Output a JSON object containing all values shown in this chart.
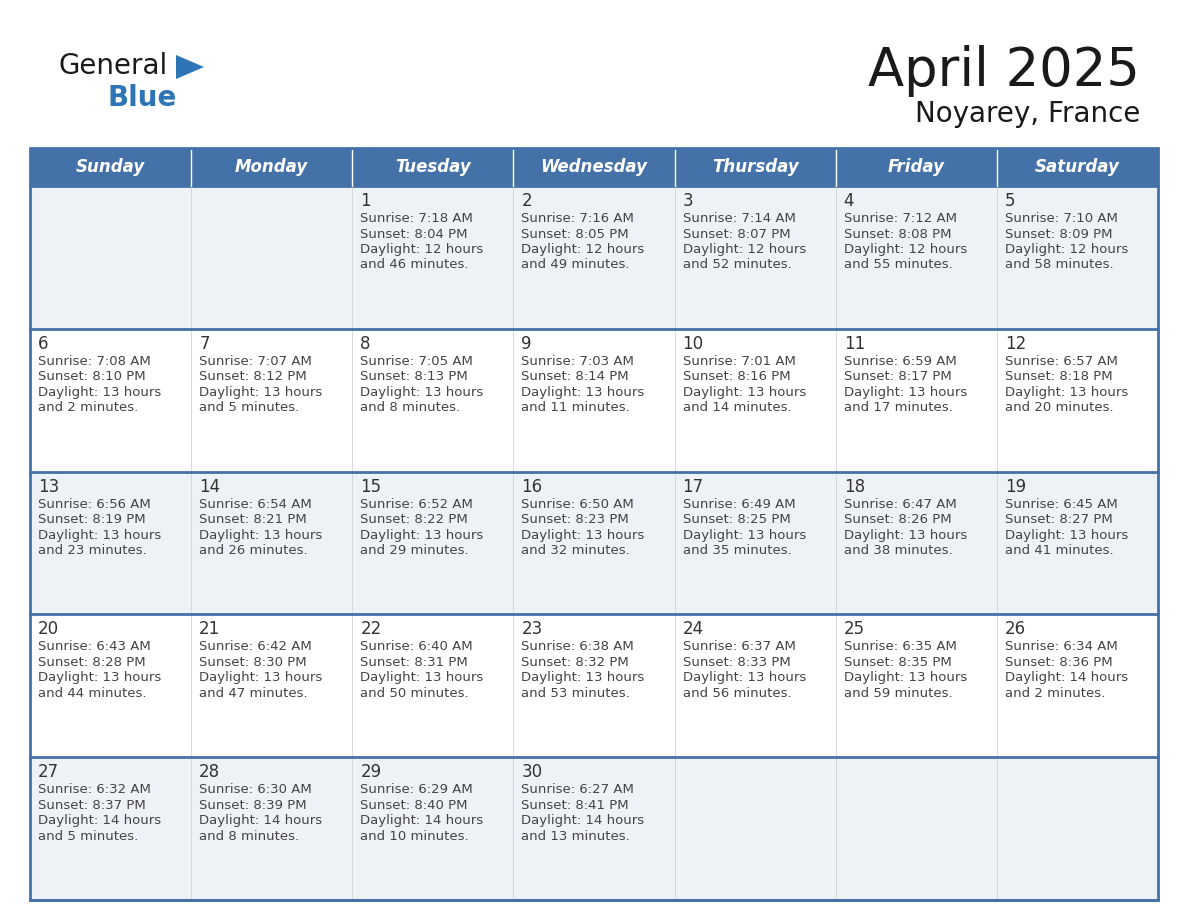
{
  "title": "April 2025",
  "subtitle": "Noyarey, France",
  "days_of_week": [
    "Sunday",
    "Monday",
    "Tuesday",
    "Wednesday",
    "Thursday",
    "Friday",
    "Saturday"
  ],
  "header_bg": "#4472a8",
  "header_text": "#ffffff",
  "row_bg_odd": "#eef2f7",
  "row_bg_even": "#ffffff",
  "row_border_color": "#4472a8",
  "day_num_color": "#333333",
  "text_color": "#444444",
  "title_color": "#1a1a1a",
  "logo_general_color": "#1a1a1a",
  "logo_blue_color": "#2e75b6",
  "weeks": [
    [
      {
        "day": "",
        "sunrise": "",
        "sunset": "",
        "daylight": ""
      },
      {
        "day": "",
        "sunrise": "",
        "sunset": "",
        "daylight": ""
      },
      {
        "day": "1",
        "sunrise": "Sunrise: 7:18 AM",
        "sunset": "Sunset: 8:04 PM",
        "daylight": "Daylight: 12 hours\nand 46 minutes."
      },
      {
        "day": "2",
        "sunrise": "Sunrise: 7:16 AM",
        "sunset": "Sunset: 8:05 PM",
        "daylight": "Daylight: 12 hours\nand 49 minutes."
      },
      {
        "day": "3",
        "sunrise": "Sunrise: 7:14 AM",
        "sunset": "Sunset: 8:07 PM",
        "daylight": "Daylight: 12 hours\nand 52 minutes."
      },
      {
        "day": "4",
        "sunrise": "Sunrise: 7:12 AM",
        "sunset": "Sunset: 8:08 PM",
        "daylight": "Daylight: 12 hours\nand 55 minutes."
      },
      {
        "day": "5",
        "sunrise": "Sunrise: 7:10 AM",
        "sunset": "Sunset: 8:09 PM",
        "daylight": "Daylight: 12 hours\nand 58 minutes."
      }
    ],
    [
      {
        "day": "6",
        "sunrise": "Sunrise: 7:08 AM",
        "sunset": "Sunset: 8:10 PM",
        "daylight": "Daylight: 13 hours\nand 2 minutes."
      },
      {
        "day": "7",
        "sunrise": "Sunrise: 7:07 AM",
        "sunset": "Sunset: 8:12 PM",
        "daylight": "Daylight: 13 hours\nand 5 minutes."
      },
      {
        "day": "8",
        "sunrise": "Sunrise: 7:05 AM",
        "sunset": "Sunset: 8:13 PM",
        "daylight": "Daylight: 13 hours\nand 8 minutes."
      },
      {
        "day": "9",
        "sunrise": "Sunrise: 7:03 AM",
        "sunset": "Sunset: 8:14 PM",
        "daylight": "Daylight: 13 hours\nand 11 minutes."
      },
      {
        "day": "10",
        "sunrise": "Sunrise: 7:01 AM",
        "sunset": "Sunset: 8:16 PM",
        "daylight": "Daylight: 13 hours\nand 14 minutes."
      },
      {
        "day": "11",
        "sunrise": "Sunrise: 6:59 AM",
        "sunset": "Sunset: 8:17 PM",
        "daylight": "Daylight: 13 hours\nand 17 minutes."
      },
      {
        "day": "12",
        "sunrise": "Sunrise: 6:57 AM",
        "sunset": "Sunset: 8:18 PM",
        "daylight": "Daylight: 13 hours\nand 20 minutes."
      }
    ],
    [
      {
        "day": "13",
        "sunrise": "Sunrise: 6:56 AM",
        "sunset": "Sunset: 8:19 PM",
        "daylight": "Daylight: 13 hours\nand 23 minutes."
      },
      {
        "day": "14",
        "sunrise": "Sunrise: 6:54 AM",
        "sunset": "Sunset: 8:21 PM",
        "daylight": "Daylight: 13 hours\nand 26 minutes."
      },
      {
        "day": "15",
        "sunrise": "Sunrise: 6:52 AM",
        "sunset": "Sunset: 8:22 PM",
        "daylight": "Daylight: 13 hours\nand 29 minutes."
      },
      {
        "day": "16",
        "sunrise": "Sunrise: 6:50 AM",
        "sunset": "Sunset: 8:23 PM",
        "daylight": "Daylight: 13 hours\nand 32 minutes."
      },
      {
        "day": "17",
        "sunrise": "Sunrise: 6:49 AM",
        "sunset": "Sunset: 8:25 PM",
        "daylight": "Daylight: 13 hours\nand 35 minutes."
      },
      {
        "day": "18",
        "sunrise": "Sunrise: 6:47 AM",
        "sunset": "Sunset: 8:26 PM",
        "daylight": "Daylight: 13 hours\nand 38 minutes."
      },
      {
        "day": "19",
        "sunrise": "Sunrise: 6:45 AM",
        "sunset": "Sunset: 8:27 PM",
        "daylight": "Daylight: 13 hours\nand 41 minutes."
      }
    ],
    [
      {
        "day": "20",
        "sunrise": "Sunrise: 6:43 AM",
        "sunset": "Sunset: 8:28 PM",
        "daylight": "Daylight: 13 hours\nand 44 minutes."
      },
      {
        "day": "21",
        "sunrise": "Sunrise: 6:42 AM",
        "sunset": "Sunset: 8:30 PM",
        "daylight": "Daylight: 13 hours\nand 47 minutes."
      },
      {
        "day": "22",
        "sunrise": "Sunrise: 6:40 AM",
        "sunset": "Sunset: 8:31 PM",
        "daylight": "Daylight: 13 hours\nand 50 minutes."
      },
      {
        "day": "23",
        "sunrise": "Sunrise: 6:38 AM",
        "sunset": "Sunset: 8:32 PM",
        "daylight": "Daylight: 13 hours\nand 53 minutes."
      },
      {
        "day": "24",
        "sunrise": "Sunrise: 6:37 AM",
        "sunset": "Sunset: 8:33 PM",
        "daylight": "Daylight: 13 hours\nand 56 minutes."
      },
      {
        "day": "25",
        "sunrise": "Sunrise: 6:35 AM",
        "sunset": "Sunset: 8:35 PM",
        "daylight": "Daylight: 13 hours\nand 59 minutes."
      },
      {
        "day": "26",
        "sunrise": "Sunrise: 6:34 AM",
        "sunset": "Sunset: 8:36 PM",
        "daylight": "Daylight: 14 hours\nand 2 minutes."
      }
    ],
    [
      {
        "day": "27",
        "sunrise": "Sunrise: 6:32 AM",
        "sunset": "Sunset: 8:37 PM",
        "daylight": "Daylight: 14 hours\nand 5 minutes."
      },
      {
        "day": "28",
        "sunrise": "Sunrise: 6:30 AM",
        "sunset": "Sunset: 8:39 PM",
        "daylight": "Daylight: 14 hours\nand 8 minutes."
      },
      {
        "day": "29",
        "sunrise": "Sunrise: 6:29 AM",
        "sunset": "Sunset: 8:40 PM",
        "daylight": "Daylight: 14 hours\nand 10 minutes."
      },
      {
        "day": "30",
        "sunrise": "Sunrise: 6:27 AM",
        "sunset": "Sunset: 8:41 PM",
        "daylight": "Daylight: 14 hours\nand 13 minutes."
      },
      {
        "day": "",
        "sunrise": "",
        "sunset": "",
        "daylight": ""
      },
      {
        "day": "",
        "sunrise": "",
        "sunset": "",
        "daylight": ""
      },
      {
        "day": "",
        "sunrise": "",
        "sunset": "",
        "daylight": ""
      }
    ]
  ]
}
